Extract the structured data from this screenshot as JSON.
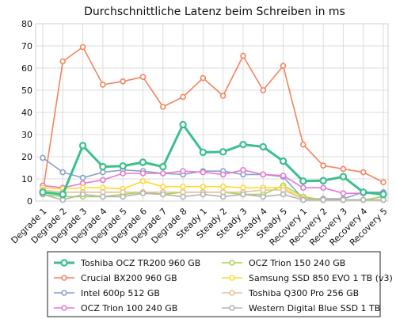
{
  "chart_data": {
    "type": "line",
    "title": "Durchschnittliche Latenz beim Schreiben in ms",
    "xlabel": "",
    "ylabel": "",
    "ylim": [
      0,
      80
    ],
    "yticks": [
      0,
      10,
      20,
      30,
      40,
      50,
      60,
      70,
      80
    ],
    "grid": true,
    "legend_position": "bottom",
    "categories": [
      "Degrade 1",
      "Degrade 2",
      "Degrade 3",
      "Degrade 4",
      "Degrade 5",
      "Degrade 6",
      "Degrade 7",
      "Degrade 8",
      "Steady 1",
      "Steady 2",
      "Steady 3",
      "Steady 4",
      "Steady 5",
      "Recovery 1",
      "Recovery 2",
      "Recovery 3",
      "Recovery 4",
      "Recovery 5"
    ],
    "series": [
      {
        "name": "Toshiba OCZ TR200 960 GB",
        "color": "#3cbf8e",
        "emphasis": true,
        "values": [
          4,
          3,
          25,
          15.5,
          15.8,
          17.5,
          15.5,
          34.5,
          22,
          22.2,
          25.5,
          24.5,
          18,
          9,
          9.2,
          11,
          4,
          3
        ]
      },
      {
        "name": "Crucial BX200 960 GB",
        "color": "#f4845f",
        "values": [
          4,
          63,
          69.5,
          52.5,
          54,
          56,
          42.5,
          47,
          55.5,
          47.5,
          65.5,
          50,
          61,
          25.5,
          16,
          14.5,
          13,
          8.5
        ]
      },
      {
        "name": "Intel 600p 512 GB",
        "color": "#8aa0c8",
        "values": [
          19.5,
          13,
          10.5,
          13,
          14,
          13.5,
          12.5,
          12,
          13.5,
          13.5,
          12,
          12,
          11,
          1,
          1,
          1,
          4,
          4
        ]
      },
      {
        "name": "OCZ Trion 100 240 GB",
        "color": "#e37ad4",
        "values": [
          7,
          6,
          8,
          9.5,
          12.5,
          12.5,
          12.5,
          13.5,
          13,
          12,
          14,
          12,
          11.5,
          6,
          6,
          3.5,
          3.5,
          3.5
        ]
      },
      {
        "name": "OCZ Trion 150 240 GB",
        "color": "#a6d854",
        "values": [
          3,
          2,
          2,
          2,
          3,
          4,
          3,
          4,
          4,
          4,
          3,
          3,
          7,
          2,
          0.5,
          0.5,
          0.5,
          2
        ]
      },
      {
        "name": "Samsung SSD 850 EVO 1 TB (v3)",
        "color": "#ffd92f",
        "values": [
          6,
          5.5,
          6,
          6,
          5.5,
          9,
          6.5,
          6.5,
          6.5,
          6.5,
          6,
          6,
          6,
          1,
          0.5,
          0.5,
          0.5,
          0.5
        ]
      },
      {
        "name": "Toshiba Q300 Pro 256 GB",
        "color": "#e5c494",
        "values": [
          5,
          4,
          4,
          4,
          4,
          4,
          4,
          4,
          4,
          4,
          4,
          5,
          5,
          1,
          0.5,
          0.5,
          0.5,
          0.5
        ]
      },
      {
        "name": "Western Digital Blue SSD 1 TB",
        "color": "#b3b3b3",
        "values": [
          3,
          0.5,
          3,
          2,
          2,
          3.5,
          3,
          2,
          3,
          2,
          3,
          2,
          3,
          0.5,
          0.5,
          0.5,
          0.5,
          0.5
        ]
      }
    ]
  }
}
